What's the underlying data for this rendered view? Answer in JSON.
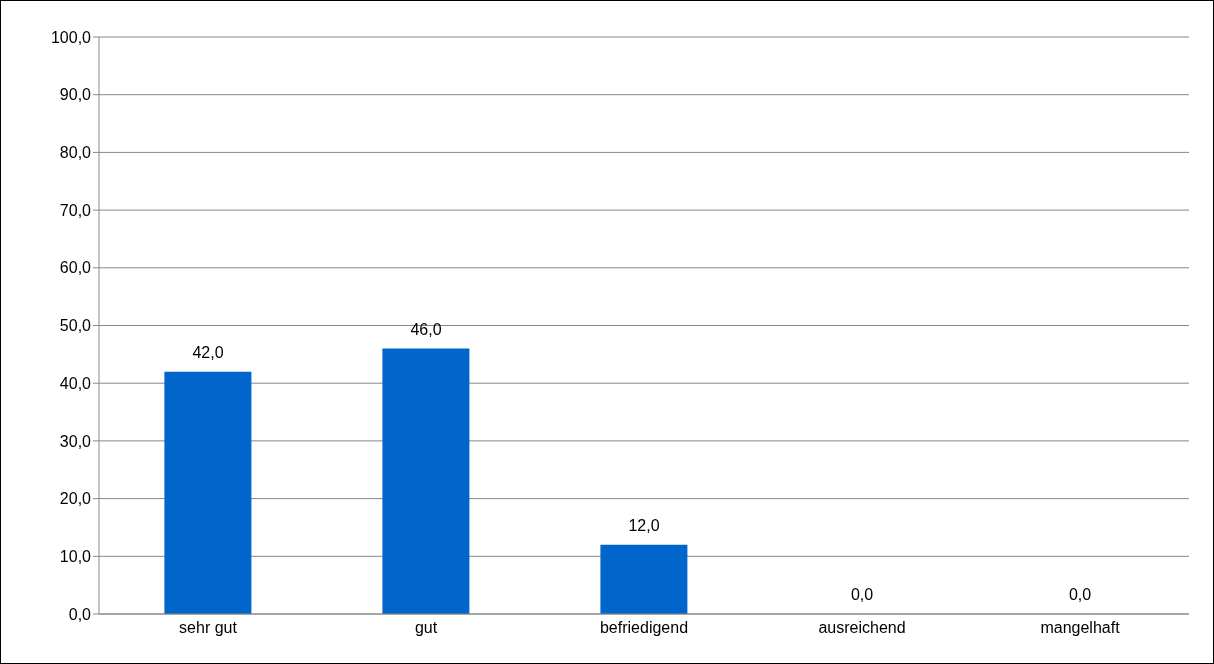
{
  "chart_data": {
    "type": "bar",
    "categories": [
      "sehr gut",
      "gut",
      "befriedigend",
      "ausreichend",
      "mangelhaft"
    ],
    "values": [
      42.0,
      46.0,
      12.0,
      0.0,
      0.0
    ],
    "value_labels": [
      "42,0",
      "46,0",
      "12,0",
      "0,0",
      "0,0"
    ],
    "color": "#0066cc",
    "ylim": [
      0,
      100
    ],
    "yticks": [
      {
        "value": 0,
        "label": "0,0"
      },
      {
        "value": 10,
        "label": "10,0"
      },
      {
        "value": 20,
        "label": "20,0"
      },
      {
        "value": 30,
        "label": "30,0"
      },
      {
        "value": 40,
        "label": "40,0"
      },
      {
        "value": 50,
        "label": "50,0"
      },
      {
        "value": 60,
        "label": "60,0"
      },
      {
        "value": 70,
        "label": "70,0"
      },
      {
        "value": 80,
        "label": "80,0"
      },
      {
        "value": 90,
        "label": "90,0"
      },
      {
        "value": 100,
        "label": "100,0"
      }
    ],
    "grid": "y",
    "legend": false
  }
}
